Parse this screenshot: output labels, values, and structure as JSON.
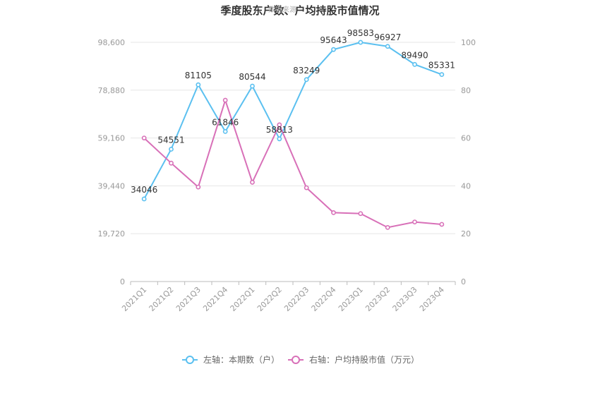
{
  "chart_data": {
    "type": "line",
    "title": "季度股东户数、户均持股市值情况",
    "watermark": "数据来源",
    "categories": [
      "2021Q1",
      "2021Q2",
      "2021Q3",
      "2021Q4",
      "2022Q1",
      "2022Q2",
      "2022Q3",
      "2022Q4",
      "2023Q1",
      "2023Q2",
      "2023Q3",
      "2023Q4"
    ],
    "y_left": {
      "ticks": [
        "0",
        "19,720",
        "39,440",
        "59,160",
        "78,880",
        "98,600"
      ],
      "range": [
        0,
        98600
      ]
    },
    "y_right": {
      "ticks": [
        "0",
        "20",
        "40",
        "60",
        "80",
        "100"
      ],
      "range": [
        0,
        100
      ]
    },
    "series": [
      {
        "name": "左轴：本期数（户）",
        "axis": "left",
        "color": "#5bc0f0",
        "values": [
          34046,
          54551,
          81105,
          61846,
          80544,
          58813,
          83249,
          95643,
          98583,
          96927,
          89490,
          85331
        ],
        "labels": [
          "34046",
          "54551",
          "81105",
          "61846",
          "80544",
          "58813",
          "83249",
          "95643",
          "98583",
          "96927",
          "89490",
          "85331"
        ]
      },
      {
        "name": "右轴：户均持股市值（万元）",
        "axis": "right",
        "color": "#d870b8",
        "values": [
          60.0,
          49.5,
          39.5,
          75.8,
          41.5,
          65.5,
          39.2,
          28.8,
          28.4,
          22.6,
          24.9,
          23.9
        ]
      }
    ],
    "grid": true,
    "legend": "bottom"
  }
}
